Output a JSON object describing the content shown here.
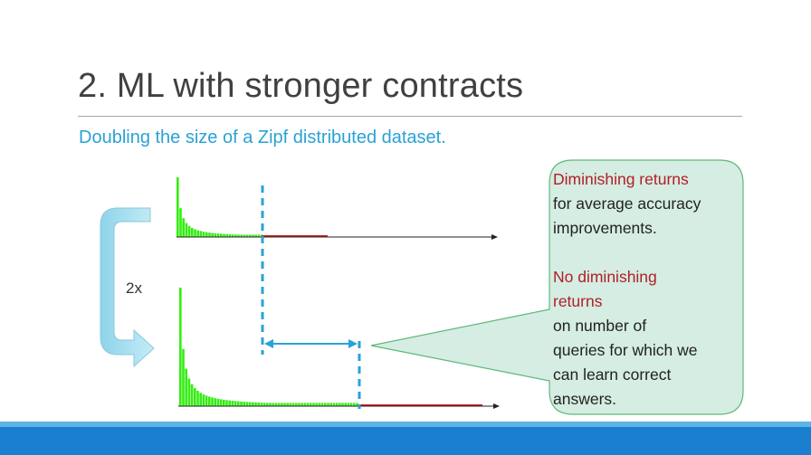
{
  "slide": {
    "title": "2. ML with stronger contracts",
    "subtitle": "Doubling the size of a Zipf distributed dataset."
  },
  "diagram": {
    "factor_label": "2x",
    "callout": {
      "heading1": "Diminishing returns",
      "line1": "for average accuracy",
      "line2": "improvements.",
      "heading2a": "No diminishing",
      "heading2b": "returns",
      "line3": "on number of",
      "line4": "queries for which we",
      "line5": "can learn correct",
      "line6": "answers."
    }
  },
  "colors": {
    "bar_green": "#33ee11",
    "tail_red": "#cc2222",
    "cutoff_blue": "#29a2d6",
    "arrow_fill": "#a6dff0",
    "callout_fill": "#d5ede2",
    "callout_border": "#5fb87a",
    "title": "#404040",
    "subtitle": "#29a2d6",
    "red_text": "#b0202a",
    "footer": "#1a7fcf"
  }
}
